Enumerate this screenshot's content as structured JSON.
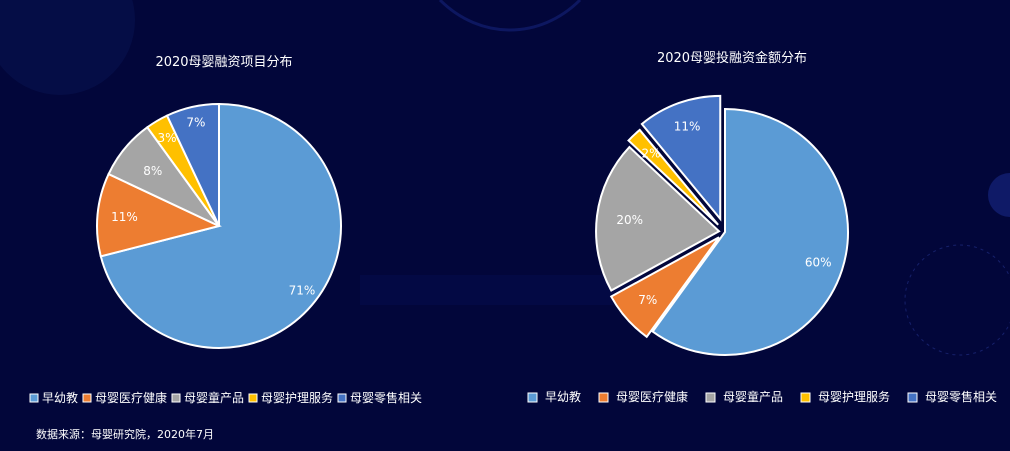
{
  "colors": {
    "background": "#02063a",
    "slice_stroke": "#ffffff"
  },
  "source_note": "数据来源：母婴研究院，2020年7月",
  "chart_data": [
    {
      "type": "pie",
      "title": "2020母婴融资项目分布",
      "legend_placement": "bottom",
      "slices": [
        {
          "name": "早幼教",
          "value": 71,
          "label": "71%",
          "color": "#5b9bd5"
        },
        {
          "name": "母婴医疗健康",
          "value": 11,
          "label": "11%",
          "color": "#ed7d31"
        },
        {
          "name": "母婴童产品",
          "value": 8,
          "label": "8%",
          "color": "#a5a5a5"
        },
        {
          "name": "母婴护理服务",
          "value": 3,
          "label": "3%",
          "color": "#ffc000"
        },
        {
          "name": "母婴零售相关",
          "value": 7,
          "label": "7%",
          "color": "#4472c4"
        }
      ]
    },
    {
      "type": "pie",
      "title": "2020母婴投融资金额分布",
      "legend_placement": "bottom",
      "exploded": true,
      "slices": [
        {
          "name": "早幼教",
          "value": 60,
          "label": "60%",
          "color": "#5b9bd5"
        },
        {
          "name": "母婴医疗健康",
          "value": 7,
          "label": "7%",
          "color": "#ed7d31"
        },
        {
          "name": "母婴童产品",
          "value": 20,
          "label": "20%",
          "color": "#a5a5a5"
        },
        {
          "name": "母婴护理服务",
          "value": 2,
          "label": "2%",
          "color": "#ffc000"
        },
        {
          "name": "母婴零售相关",
          "value": 11,
          "label": "11%",
          "color": "#4472c4"
        }
      ]
    }
  ]
}
